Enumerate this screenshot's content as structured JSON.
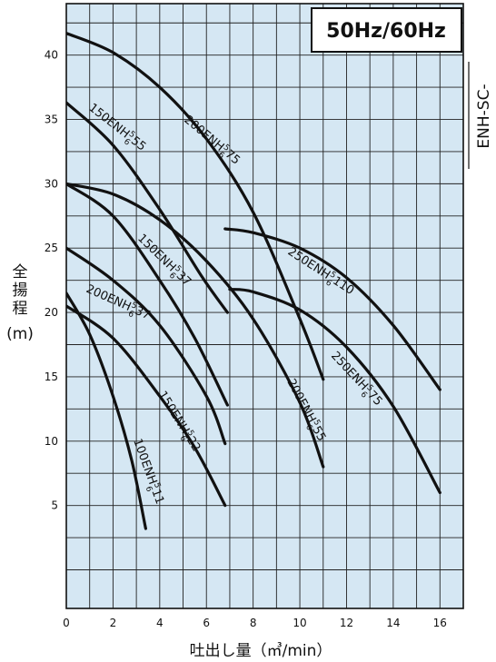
{
  "badge": "50Hz/60Hz",
  "side_label": "ENH-SC-",
  "chart_data": {
    "type": "line",
    "xlabel": "吐出し量（㎥/min）",
    "ylabel": "全揚程（m）",
    "xlim": [
      0,
      17
    ],
    "ylim": [
      -3,
      44
    ],
    "x_ticks": [
      0,
      2,
      4,
      6,
      8,
      10,
      12,
      14,
      16
    ],
    "y_ticks": [
      5,
      10,
      15,
      20,
      25,
      30,
      35,
      40
    ],
    "x_tick_labels": [
      "0",
      "2",
      "4",
      "6",
      "8",
      "10",
      "12",
      "14",
      "16"
    ],
    "y_tick_labels": [
      "5",
      "10",
      "15",
      "20",
      "25",
      "30",
      "35",
      "40"
    ],
    "grid": true,
    "series": [
      {
        "name": "100ENH 5/6 11",
        "x": [
          0,
          1,
          2,
          2.8,
          3.4
        ],
        "y": [
          21.5,
          18.3,
          13.5,
          8.5,
          3.2
        ]
      },
      {
        "name": "150ENH 5/6 22",
        "x": [
          0,
          2,
          4,
          5.5,
          6.8
        ],
        "y": [
          20.5,
          18,
          13.5,
          9.5,
          5
        ]
      },
      {
        "name": "200ENH 5/6 37",
        "x": [
          0,
          2,
          4,
          6,
          6.8
        ],
        "y": [
          25,
          22.5,
          19,
          13.5,
          9.8
        ]
      },
      {
        "name": "150ENH 5/6 37",
        "x": [
          0,
          2,
          4,
          5.5,
          6.9
        ],
        "y": [
          30,
          27.5,
          22.5,
          18,
          12.8
        ]
      },
      {
        "name": "150ENH 5/6 55",
        "x": [
          0,
          2,
          4,
          5.8,
          6.9
        ],
        "y": [
          36.3,
          33,
          28,
          22.8,
          20
        ]
      },
      {
        "name": "200ENH 5/6 55",
        "x": [
          0,
          2,
          4,
          6,
          8,
          10,
          11
        ],
        "y": [
          30,
          29.2,
          27.2,
          24,
          19.5,
          13,
          8
        ]
      },
      {
        "name": "200ENH 5/6 75",
        "x": [
          0,
          2,
          4,
          6,
          8,
          10,
          11
        ],
        "y": [
          41.7,
          40.2,
          37.5,
          33.5,
          27.8,
          19.5,
          14.8
        ]
      },
      {
        "name": "250ENH 5/6 75",
        "x": [
          7,
          8,
          10,
          12,
          14,
          16
        ],
        "y": [
          21.8,
          21.6,
          20.2,
          17.3,
          12.7,
          6
        ]
      },
      {
        "name": "250ENH 5/6 110",
        "x": [
          6.8,
          8,
          10,
          12,
          14,
          16
        ],
        "y": [
          26.5,
          26.2,
          25,
          22.7,
          19,
          14
        ]
      }
    ]
  }
}
